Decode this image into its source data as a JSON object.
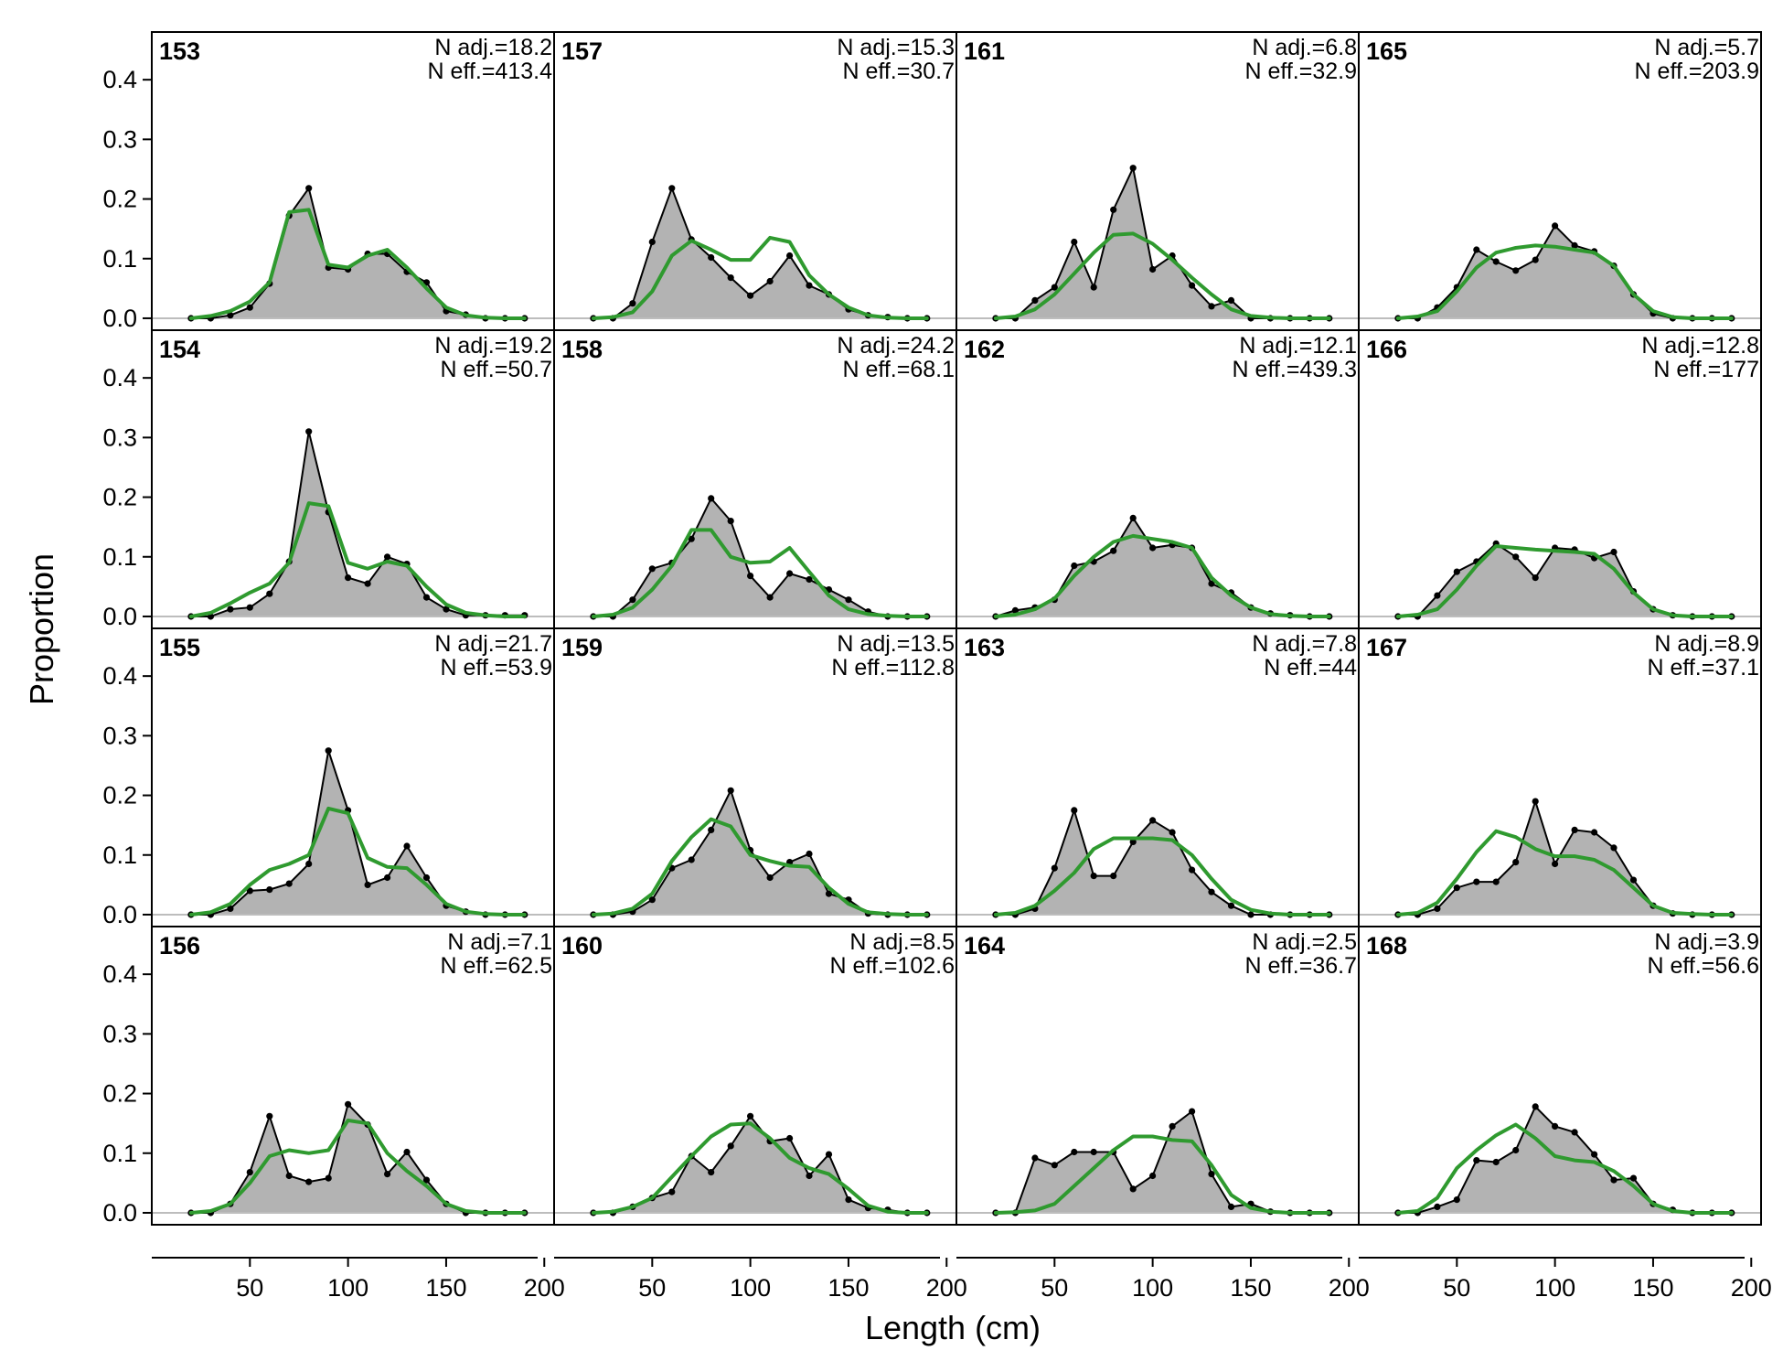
{
  "chart_data": {
    "type": "area",
    "xlabel": "Length (cm)",
    "ylabel": "Proportion",
    "xlim": [
      0,
      205
    ],
    "ylim": [
      -0.02,
      0.48
    ],
    "x_ticks": [
      50,
      100,
      150,
      200
    ],
    "y_ticks": [
      0.0,
      0.1,
      0.2,
      0.3,
      0.4
    ],
    "y_tick_labels": [
      "0.0",
      "0.1",
      "0.2",
      "0.3",
      "0.4"
    ],
    "layout": "4x4 grid, panels ordered top-to-bottom then left-to-right",
    "x": [
      20,
      30,
      40,
      50,
      60,
      70,
      80,
      90,
      100,
      110,
      120,
      130,
      140,
      150,
      160,
      170,
      180,
      190
    ],
    "series_styles": {
      "observed": {
        "fill": "#b3b3b3",
        "line": "#000000",
        "points": true
      },
      "expected": {
        "line": "#2f9a2f"
      }
    },
    "panels": [
      {
        "id": "153",
        "n_adj": "N adj.=18.2",
        "n_eff": "N eff.=413.4",
        "observed": [
          0,
          0,
          0.005,
          0.018,
          0.058,
          0.172,
          0.218,
          0.085,
          0.082,
          0.108,
          0.108,
          0.078,
          0.06,
          0.012,
          0.006,
          0,
          0,
          0
        ],
        "expected": [
          0,
          0.004,
          0.012,
          0.028,
          0.06,
          0.178,
          0.182,
          0.09,
          0.085,
          0.105,
          0.115,
          0.085,
          0.05,
          0.018,
          0.005,
          0.001,
          0,
          0
        ]
      },
      {
        "id": "154",
        "n_adj": "N adj.=19.2",
        "n_eff": "N eff.=50.7",
        "observed": [
          0,
          0,
          0.012,
          0.015,
          0.038,
          0.092,
          0.31,
          0.175,
          0.065,
          0.055,
          0.1,
          0.088,
          0.032,
          0.012,
          0.002,
          0.002,
          0.002,
          0.002
        ],
        "expected": [
          0,
          0.006,
          0.022,
          0.04,
          0.055,
          0.09,
          0.19,
          0.185,
          0.09,
          0.08,
          0.092,
          0.085,
          0.05,
          0.02,
          0.006,
          0.002,
          0,
          0
        ]
      },
      {
        "id": "155",
        "n_adj": "N adj.=21.7",
        "n_eff": "N eff.=53.9",
        "observed": [
          0,
          0,
          0.01,
          0.04,
          0.042,
          0.052,
          0.085,
          0.275,
          0.175,
          0.05,
          0.062,
          0.115,
          0.062,
          0.015,
          0.005,
          0,
          0,
          0
        ],
        "expected": [
          0,
          0.004,
          0.018,
          0.05,
          0.075,
          0.085,
          0.1,
          0.178,
          0.17,
          0.095,
          0.08,
          0.078,
          0.05,
          0.018,
          0.005,
          0.001,
          0,
          0
        ]
      },
      {
        "id": "156",
        "n_adj": "N adj.=7.1",
        "n_eff": "N eff.=62.5",
        "observed": [
          0,
          0,
          0.015,
          0.068,
          0.162,
          0.062,
          0.052,
          0.058,
          0.182,
          0.148,
          0.065,
          0.102,
          0.055,
          0.015,
          0,
          0,
          0,
          0
        ],
        "expected": [
          0,
          0.003,
          0.015,
          0.05,
          0.095,
          0.105,
          0.1,
          0.105,
          0.155,
          0.15,
          0.1,
          0.07,
          0.045,
          0.015,
          0.003,
          0,
          0,
          0
        ]
      },
      {
        "id": "157",
        "n_adj": "N adj.=15.3",
        "n_eff": "N eff.=30.7",
        "observed": [
          0,
          0,
          0.025,
          0.128,
          0.218,
          0.132,
          0.102,
          0.068,
          0.038,
          0.062,
          0.105,
          0.055,
          0.04,
          0.015,
          0.005,
          0.002,
          0,
          0
        ],
        "expected": [
          0,
          0.002,
          0.01,
          0.045,
          0.105,
          0.13,
          0.115,
          0.098,
          0.098,
          0.135,
          0.128,
          0.072,
          0.04,
          0.018,
          0.005,
          0.001,
          0,
          0
        ]
      },
      {
        "id": "158",
        "n_adj": "N adj.=24.2",
        "n_eff": "N eff.=68.1",
        "observed": [
          0,
          0,
          0.028,
          0.08,
          0.09,
          0.13,
          0.198,
          0.16,
          0.068,
          0.032,
          0.072,
          0.062,
          0.045,
          0.028,
          0.008,
          0,
          0,
          0
        ],
        "expected": [
          0,
          0.003,
          0.015,
          0.045,
          0.085,
          0.145,
          0.145,
          0.1,
          0.09,
          0.092,
          0.115,
          0.075,
          0.035,
          0.012,
          0.004,
          0.001,
          0,
          0
        ]
      },
      {
        "id": "159",
        "n_adj": "N adj.=13.5",
        "n_eff": "N eff.=112.8",
        "observed": [
          0,
          0,
          0.005,
          0.025,
          0.078,
          0.092,
          0.142,
          0.208,
          0.108,
          0.062,
          0.088,
          0.102,
          0.035,
          0.025,
          0.002,
          0,
          0,
          0
        ],
        "expected": [
          0,
          0.002,
          0.01,
          0.035,
          0.09,
          0.13,
          0.16,
          0.148,
          0.1,
          0.09,
          0.082,
          0.08,
          0.045,
          0.018,
          0.004,
          0.001,
          0,
          0
        ]
      },
      {
        "id": "160",
        "n_adj": "N adj.=8.5",
        "n_eff": "N eff.=102.6",
        "observed": [
          0,
          0,
          0.01,
          0.025,
          0.035,
          0.095,
          0.068,
          0.112,
          0.162,
          0.12,
          0.125,
          0.062,
          0.098,
          0.022,
          0.008,
          0.005,
          0,
          0
        ],
        "expected": [
          0,
          0.002,
          0.01,
          0.025,
          0.06,
          0.095,
          0.128,
          0.148,
          0.15,
          0.125,
          0.092,
          0.075,
          0.065,
          0.04,
          0.012,
          0.002,
          0,
          0
        ]
      },
      {
        "id": "161",
        "n_adj": "N adj.=6.8",
        "n_eff": "N eff.=32.9",
        "observed": [
          0,
          0,
          0.03,
          0.052,
          0.128,
          0.052,
          0.182,
          0.252,
          0.082,
          0.105,
          0.055,
          0.02,
          0.03,
          0,
          0,
          0,
          0,
          0
        ],
        "expected": [
          0,
          0.003,
          0.015,
          0.04,
          0.075,
          0.11,
          0.14,
          0.142,
          0.125,
          0.098,
          0.068,
          0.04,
          0.015,
          0.004,
          0.001,
          0,
          0,
          0
        ]
      },
      {
        "id": "162",
        "n_adj": "N adj.=12.1",
        "n_eff": "N eff.=439.3",
        "observed": [
          0,
          0.01,
          0.015,
          0.028,
          0.085,
          0.092,
          0.11,
          0.165,
          0.115,
          0.12,
          0.115,
          0.055,
          0.04,
          0.015,
          0.005,
          0.002,
          0,
          0
        ],
        "expected": [
          0,
          0.003,
          0.012,
          0.03,
          0.068,
          0.1,
          0.125,
          0.135,
          0.13,
          0.125,
          0.115,
          0.065,
          0.035,
          0.015,
          0.004,
          0.001,
          0,
          0
        ]
      },
      {
        "id": "163",
        "n_adj": "N adj.=7.8",
        "n_eff": "N eff.=44",
        "observed": [
          0,
          0,
          0.01,
          0.078,
          0.175,
          0.065,
          0.065,
          0.122,
          0.158,
          0.138,
          0.075,
          0.038,
          0.015,
          0,
          0,
          0,
          0,
          0
        ],
        "expected": [
          0,
          0.003,
          0.015,
          0.04,
          0.07,
          0.11,
          0.128,
          0.128,
          0.128,
          0.125,
          0.1,
          0.06,
          0.025,
          0.008,
          0.002,
          0,
          0,
          0
        ]
      },
      {
        "id": "164",
        "n_adj": "N adj.=2.5",
        "n_eff": "N eff.=36.7",
        "observed": [
          0,
          0,
          0.092,
          0.08,
          0.102,
          0.102,
          0.102,
          0.04,
          0.062,
          0.145,
          0.17,
          0.065,
          0.01,
          0.015,
          0.002,
          0,
          0,
          0
        ],
        "expected": [
          0,
          0.001,
          0.004,
          0.015,
          0.045,
          0.075,
          0.105,
          0.128,
          0.128,
          0.122,
          0.12,
          0.08,
          0.03,
          0.008,
          0.002,
          0,
          0,
          0
        ]
      },
      {
        "id": "165",
        "n_adj": "N adj.=5.7",
        "n_eff": "N eff.=203.9",
        "observed": [
          0,
          0,
          0.018,
          0.052,
          0.115,
          0.095,
          0.08,
          0.098,
          0.155,
          0.122,
          0.112,
          0.088,
          0.04,
          0.008,
          0,
          0,
          0,
          0
        ],
        "expected": [
          0,
          0.003,
          0.012,
          0.045,
          0.085,
          0.11,
          0.118,
          0.122,
          0.12,
          0.115,
          0.11,
          0.088,
          0.04,
          0.012,
          0.002,
          0,
          0,
          0
        ]
      },
      {
        "id": "166",
        "n_adj": "N adj.=12.8",
        "n_eff": "N eff.=177",
        "observed": [
          0,
          0,
          0.035,
          0.075,
          0.092,
          0.122,
          0.1,
          0.065,
          0.115,
          0.112,
          0.098,
          0.108,
          0.042,
          0.012,
          0.002,
          0,
          0,
          0
        ],
        "expected": [
          0,
          0.003,
          0.012,
          0.045,
          0.085,
          0.118,
          0.115,
          0.112,
          0.11,
          0.108,
          0.105,
          0.08,
          0.04,
          0.012,
          0.002,
          0,
          0,
          0
        ]
      },
      {
        "id": "167",
        "n_adj": "N adj.=8.9",
        "n_eff": "N eff.=37.1",
        "observed": [
          0,
          0,
          0.01,
          0.045,
          0.055,
          0.055,
          0.088,
          0.19,
          0.085,
          0.142,
          0.138,
          0.112,
          0.058,
          0.015,
          0.002,
          0,
          0,
          0
        ],
        "expected": [
          0,
          0.003,
          0.02,
          0.06,
          0.105,
          0.14,
          0.13,
          0.11,
          0.098,
          0.098,
          0.092,
          0.075,
          0.045,
          0.015,
          0.003,
          0.001,
          0,
          0
        ]
      },
      {
        "id": "168",
        "n_adj": "N adj.=3.9",
        "n_eff": "N eff.=56.6",
        "observed": [
          0,
          0,
          0.01,
          0.022,
          0.088,
          0.085,
          0.105,
          0.178,
          0.145,
          0.135,
          0.098,
          0.055,
          0.058,
          0.015,
          0.005,
          0,
          0,
          0
        ],
        "expected": [
          0,
          0.003,
          0.025,
          0.075,
          0.105,
          0.13,
          0.148,
          0.125,
          0.095,
          0.088,
          0.085,
          0.07,
          0.045,
          0.015,
          0.003,
          0,
          0,
          0
        ]
      }
    ]
  }
}
